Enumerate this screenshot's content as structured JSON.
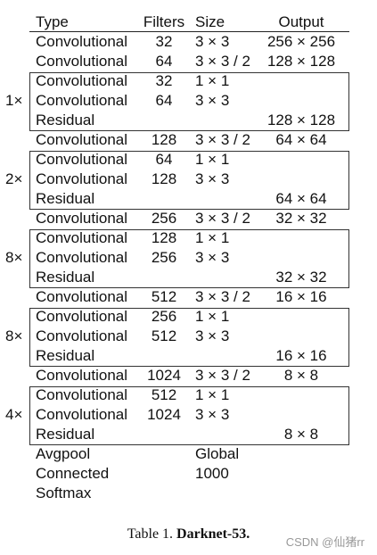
{
  "table": {
    "header": [
      "Type",
      "Filters",
      "Size",
      "Output"
    ],
    "sections": [
      {
        "rows": [
          [
            "Convolutional",
            "32",
            "3 × 3",
            "256 × 256"
          ],
          [
            "Convolutional",
            "64",
            "3 × 3 / 2",
            "128 × 128"
          ]
        ]
      },
      {
        "repeat": "1×",
        "rows": [
          [
            "Convolutional",
            "32",
            "1 × 1",
            null
          ],
          [
            "Convolutional",
            "64",
            "3 × 3",
            null
          ],
          [
            "Residual",
            null,
            null,
            "128 × 128"
          ]
        ]
      },
      {
        "rows": [
          [
            "Convolutional",
            "128",
            "3 × 3 / 2",
            "64 × 64"
          ]
        ]
      },
      {
        "repeat": "2×",
        "rows": [
          [
            "Convolutional",
            "64",
            "1 × 1",
            null
          ],
          [
            "Convolutional",
            "128",
            "3 × 3",
            null
          ],
          [
            "Residual",
            null,
            null,
            "64 × 64"
          ]
        ]
      },
      {
        "rows": [
          [
            "Convolutional",
            "256",
            "3 × 3 / 2",
            "32 × 32"
          ]
        ]
      },
      {
        "repeat": "8×",
        "rows": [
          [
            "Convolutional",
            "128",
            "1 × 1",
            null
          ],
          [
            "Convolutional",
            "256",
            "3 × 3",
            null
          ],
          [
            "Residual",
            null,
            null,
            "32 × 32"
          ]
        ]
      },
      {
        "rows": [
          [
            "Convolutional",
            "512",
            "3 × 3 / 2",
            "16 × 16"
          ]
        ]
      },
      {
        "repeat": "8×",
        "rows": [
          [
            "Convolutional",
            "256",
            "1 × 1",
            null
          ],
          [
            "Convolutional",
            "512",
            "3 × 3",
            null
          ],
          [
            "Residual",
            null,
            null,
            "16 × 16"
          ]
        ]
      },
      {
        "rows": [
          [
            "Convolutional",
            "1024",
            "3 × 3 / 2",
            "8 × 8"
          ]
        ]
      },
      {
        "repeat": "4×",
        "rows": [
          [
            "Convolutional",
            "512",
            "1 × 1",
            null
          ],
          [
            "Convolutional",
            "1024",
            "3 × 3",
            null
          ],
          [
            "Residual",
            null,
            null,
            "8 × 8"
          ]
        ]
      },
      {
        "rows": [
          [
            "Avgpool",
            null,
            "Global",
            null
          ],
          [
            "Connected",
            null,
            "1000",
            null
          ],
          [
            "Softmax",
            null,
            null,
            null
          ]
        ]
      }
    ]
  },
  "caption": {
    "label": "Table 1.",
    "title": "Darknet-53."
  },
  "watermark": "CSDN @仙猪rr"
}
